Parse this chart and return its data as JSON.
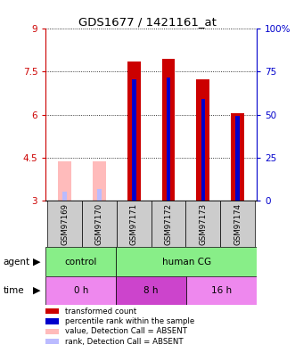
{
  "title": "GDS1677 / 1421161_at",
  "samples": [
    "GSM97169",
    "GSM97170",
    "GSM97171",
    "GSM97172",
    "GSM97173",
    "GSM97174"
  ],
  "red_values": [
    4.35,
    4.35,
    7.85,
    7.95,
    7.25,
    6.05
  ],
  "blue_values": [
    3.3,
    3.4,
    7.25,
    7.3,
    6.55,
    5.95
  ],
  "absent_red": [
    true,
    true,
    false,
    false,
    false,
    false
  ],
  "absent_blue": [
    true,
    true,
    false,
    false,
    false,
    false
  ],
  "ylim": [
    3.0,
    9.0
  ],
  "yticks_left": [
    3,
    4.5,
    6,
    7.5,
    9
  ],
  "yticks_right": [
    0,
    25,
    50,
    75,
    100
  ],
  "ytick_left_labels": [
    "3",
    "4.5",
    "6",
    "7.5",
    "9"
  ],
  "ytick_right_labels": [
    "0",
    "25",
    "50",
    "75",
    "100%"
  ],
  "left_color": "#cc0000",
  "right_color": "#0000cc",
  "agent_color": "#88ee88",
  "time_color_light": "#ee88ee",
  "time_color_dark": "#cc44cc",
  "sample_bg_color": "#cccccc",
  "legend_items": [
    {
      "color": "#cc0000",
      "label": "transformed count"
    },
    {
      "color": "#0000cc",
      "label": "percentile rank within the sample"
    },
    {
      "color": "#ffbbbb",
      "label": "value, Detection Call = ABSENT"
    },
    {
      "color": "#bbbbff",
      "label": "rank, Detection Call = ABSENT"
    }
  ]
}
